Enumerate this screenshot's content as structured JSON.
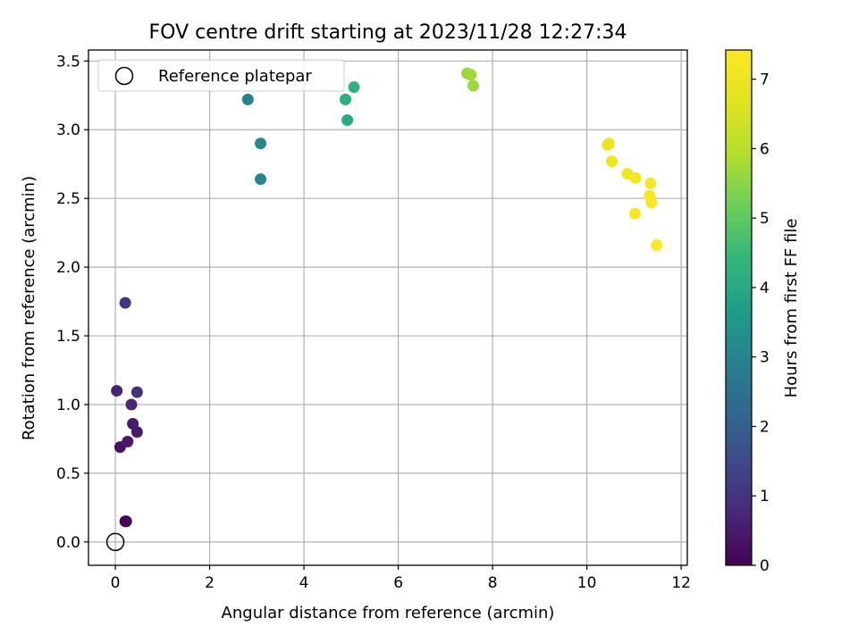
{
  "chart_data": {
    "type": "scatter",
    "title": "FOV centre drift starting at 2023/11/28 12:27:34",
    "xlabel": "Angular distance from reference (arcmin)",
    "ylabel": "Rotation from reference (arcmin)",
    "xlim": [
      -0.57,
      12.13
    ],
    "ylim": [
      -0.17,
      3.58
    ],
    "x_ticks": [
      0,
      2,
      4,
      6,
      8,
      10,
      12
    ],
    "y_ticks": [
      0.0,
      0.5,
      1.0,
      1.5,
      2.0,
      2.5,
      3.0,
      3.5
    ],
    "x_tick_labels": [
      "0",
      "2",
      "4",
      "6",
      "8",
      "10",
      "12"
    ],
    "y_tick_labels": [
      "0.0",
      "0.5",
      "1.0",
      "1.5",
      "2.0",
      "2.5",
      "3.0",
      "3.5"
    ],
    "grid": true,
    "colormap": "viridis",
    "colorbar": {
      "label": "Hours from first FF file",
      "range": [
        0,
        7.42
      ],
      "ticks": [
        0,
        1,
        2,
        3,
        4,
        5,
        6,
        7
      ],
      "tick_labels": [
        "0",
        "1",
        "2",
        "3",
        "4",
        "5",
        "6",
        "7"
      ]
    },
    "legend": {
      "placement": "top-left",
      "entries": [
        {
          "label": "Reference platepar",
          "marker": "open-circle"
        }
      ]
    },
    "reference_point": {
      "x": 0.0,
      "y": 0.0
    },
    "series": [
      {
        "x": [
          0.23,
          0.21,
          0.1,
          0.26,
          0.46,
          0.37,
          0.34,
          0.03,
          0.46,
          0.21,
          2.81,
          3.08,
          3.08,
          4.88,
          4.92,
          5.06,
          7.46,
          7.54,
          7.59,
          10.44,
          10.47,
          10.53,
          10.86,
          11.03,
          11.35,
          11.33,
          11.37,
          11.02,
          11.48
        ],
        "y": [
          0.15,
          0.15,
          0.69,
          0.73,
          0.8,
          0.86,
          1.0,
          1.1,
          1.09,
          1.74,
          3.22,
          2.9,
          2.64,
          3.22,
          3.07,
          3.31,
          3.41,
          3.4,
          3.32,
          2.89,
          2.9,
          2.77,
          2.68,
          2.65,
          2.61,
          2.52,
          2.47,
          2.39,
          2.16
        ],
        "hours": [
          0.05,
          0.08,
          0.3,
          0.45,
          0.5,
          0.55,
          0.7,
          0.65,
          0.95,
          1.0,
          3.0,
          3.2,
          3.1,
          4.2,
          4.1,
          4.3,
          5.6,
          5.7,
          5.65,
          6.9,
          7.0,
          7.0,
          7.15,
          7.2,
          7.3,
          7.35,
          7.35,
          7.3,
          7.4
        ]
      }
    ]
  }
}
